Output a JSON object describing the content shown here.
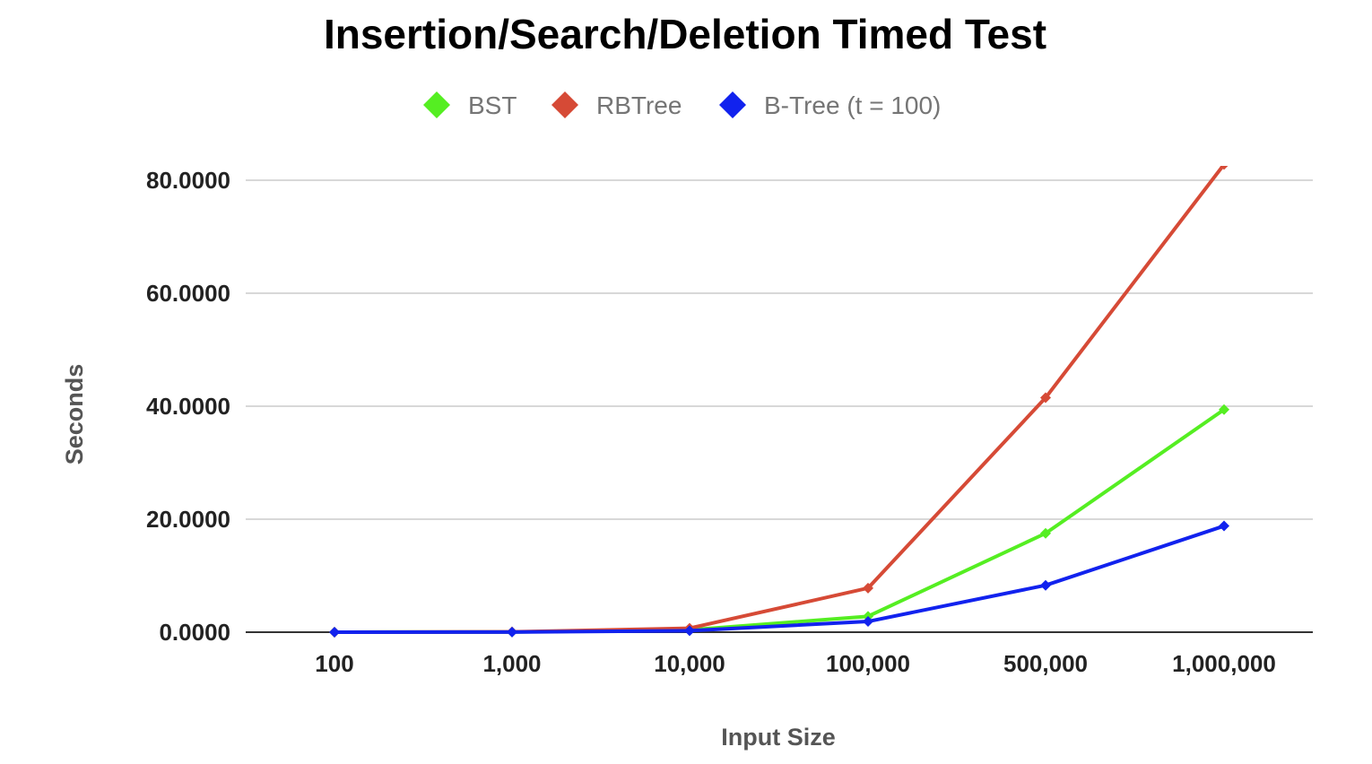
{
  "chart_data": {
    "type": "line",
    "title": "Insertion/Search/Deletion Timed Test",
    "xlabel": "Input Size",
    "ylabel": "Seconds",
    "categories": [
      "100",
      "1,000",
      "10,000",
      "100,000",
      "500,000",
      "1,000,000"
    ],
    "y_ticks": [
      "0.0000",
      "20.0000",
      "40.0000",
      "60.0000",
      "80.0000"
    ],
    "y_tick_values": [
      0,
      20,
      40,
      60,
      80
    ],
    "ylim": [
      0,
      80
    ],
    "grid": true,
    "legend_position": "top-center",
    "series": [
      {
        "name": "BST",
        "color": "#55ee22",
        "values": [
          0.0,
          0.03,
          0.4,
          2.8,
          17.5,
          39.4
        ]
      },
      {
        "name": "RBTree",
        "color": "#d64a36",
        "values": [
          0.0,
          0.05,
          0.7,
          7.8,
          41.5,
          82.8
        ]
      },
      {
        "name": "B-Tree (t = 100)",
        "color": "#1122ee",
        "values": [
          0.0,
          0.02,
          0.25,
          1.9,
          8.3,
          18.8
        ]
      }
    ]
  }
}
